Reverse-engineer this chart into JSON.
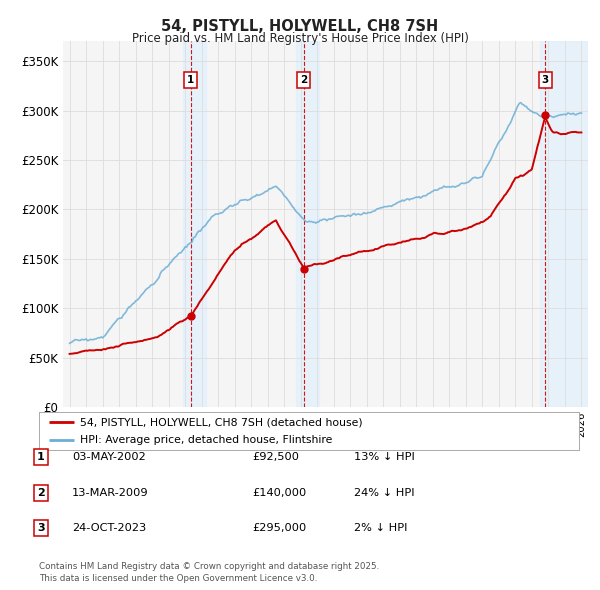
{
  "title": "54, PISTYLL, HOLYWELL, CH8 7SH",
  "subtitle": "Price paid vs. HM Land Registry's House Price Index (HPI)",
  "title_color": "#222222",
  "background_color": "#ffffff",
  "plot_bg_color": "#f5f5f5",
  "grid_color": "#dddddd",
  "line_red_color": "#cc0000",
  "line_blue_color": "#6baed6",
  "sale_line_color": "#cc0000",
  "shade_color": "#ddeeff",
  "ylim": [
    0,
    370000
  ],
  "yticks": [
    0,
    50000,
    100000,
    150000,
    200000,
    250000,
    300000,
    350000
  ],
  "ytick_labels": [
    "£0",
    "£50K",
    "£100K",
    "£150K",
    "£200K",
    "£250K",
    "£300K",
    "£350K"
  ],
  "xlim_start": 1994.6,
  "xlim_end": 2026.4,
  "sales": [
    {
      "num": 1,
      "year": 2002.34,
      "price": 92500,
      "date": "03-MAY-2002",
      "hpi_pct": "13%"
    },
    {
      "num": 2,
      "year": 2009.19,
      "price": 140000,
      "date": "13-MAR-2009",
      "hpi_pct": "24%"
    },
    {
      "num": 3,
      "year": 2023.81,
      "price": 295000,
      "date": "24-OCT-2023",
      "hpi_pct": "2%"
    }
  ],
  "legend_red_label": "54, PISTYLL, HOLYWELL, CH8 7SH (detached house)",
  "legend_blue_label": "HPI: Average price, detached house, Flintshire",
  "footnote": "Contains HM Land Registry data © Crown copyright and database right 2025.\nThis data is licensed under the Open Government Licence v3.0.",
  "table": [
    {
      "num": 1,
      "date": "03-MAY-2002",
      "price": "£92,500",
      "hpi": "13% ↓ HPI"
    },
    {
      "num": 2,
      "date": "13-MAR-2009",
      "price": "£140,000",
      "hpi": "24% ↓ HPI"
    },
    {
      "num": 3,
      "date": "24-OCT-2023",
      "price": "£295,000",
      "hpi": "2% ↓ HPI"
    }
  ]
}
